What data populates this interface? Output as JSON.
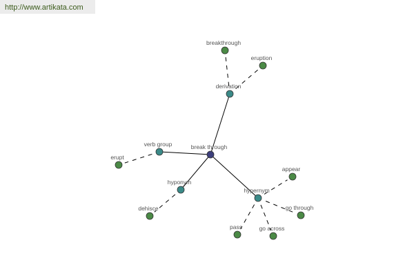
{
  "site_url": "http://www.artikata.com",
  "colors": {
    "center": "#3d3f7c",
    "relation": "#3b8a88",
    "leaf": "#4b8a46",
    "edge": "#000000"
  },
  "nodes": [
    {
      "id": "break-through",
      "label": "break through",
      "kind": "center"
    },
    {
      "id": "derivation",
      "label": "derivation",
      "kind": "relation"
    },
    {
      "id": "verb-group",
      "label": "verb group",
      "kind": "relation"
    },
    {
      "id": "hyponym",
      "label": "hyponym",
      "kind": "relation"
    },
    {
      "id": "hypernym",
      "label": "hypernym",
      "kind": "relation"
    },
    {
      "id": "breakthrough",
      "label": "breakthrough",
      "kind": "leaf"
    },
    {
      "id": "eruption",
      "label": "eruption",
      "kind": "leaf"
    },
    {
      "id": "erupt",
      "label": "erupt",
      "kind": "leaf"
    },
    {
      "id": "dehisce",
      "label": "dehisce",
      "kind": "leaf"
    },
    {
      "id": "appear",
      "label": "appear",
      "kind": "leaf"
    },
    {
      "id": "go-through",
      "label": "go through",
      "kind": "leaf"
    },
    {
      "id": "pass",
      "label": "pass",
      "kind": "leaf"
    },
    {
      "id": "go-across",
      "label": "go across",
      "kind": "leaf"
    }
  ],
  "edges": [
    {
      "from": "break-through",
      "to": "derivation",
      "style": "solid"
    },
    {
      "from": "break-through",
      "to": "verb-group",
      "style": "solid"
    },
    {
      "from": "break-through",
      "to": "hyponym",
      "style": "solid"
    },
    {
      "from": "break-through",
      "to": "hypernym",
      "style": "solid"
    },
    {
      "from": "derivation",
      "to": "breakthrough",
      "style": "dashed"
    },
    {
      "from": "derivation",
      "to": "eruption",
      "style": "dashed"
    },
    {
      "from": "verb-group",
      "to": "erupt",
      "style": "dashed"
    },
    {
      "from": "hyponym",
      "to": "dehisce",
      "style": "dashed"
    },
    {
      "from": "hypernym",
      "to": "appear",
      "style": "dashed"
    },
    {
      "from": "hypernym",
      "to": "go-through",
      "style": "dashed"
    },
    {
      "from": "hypernym",
      "to": "pass",
      "style": "dashed"
    },
    {
      "from": "hypernym",
      "to": "go-across",
      "style": "dashed"
    }
  ]
}
